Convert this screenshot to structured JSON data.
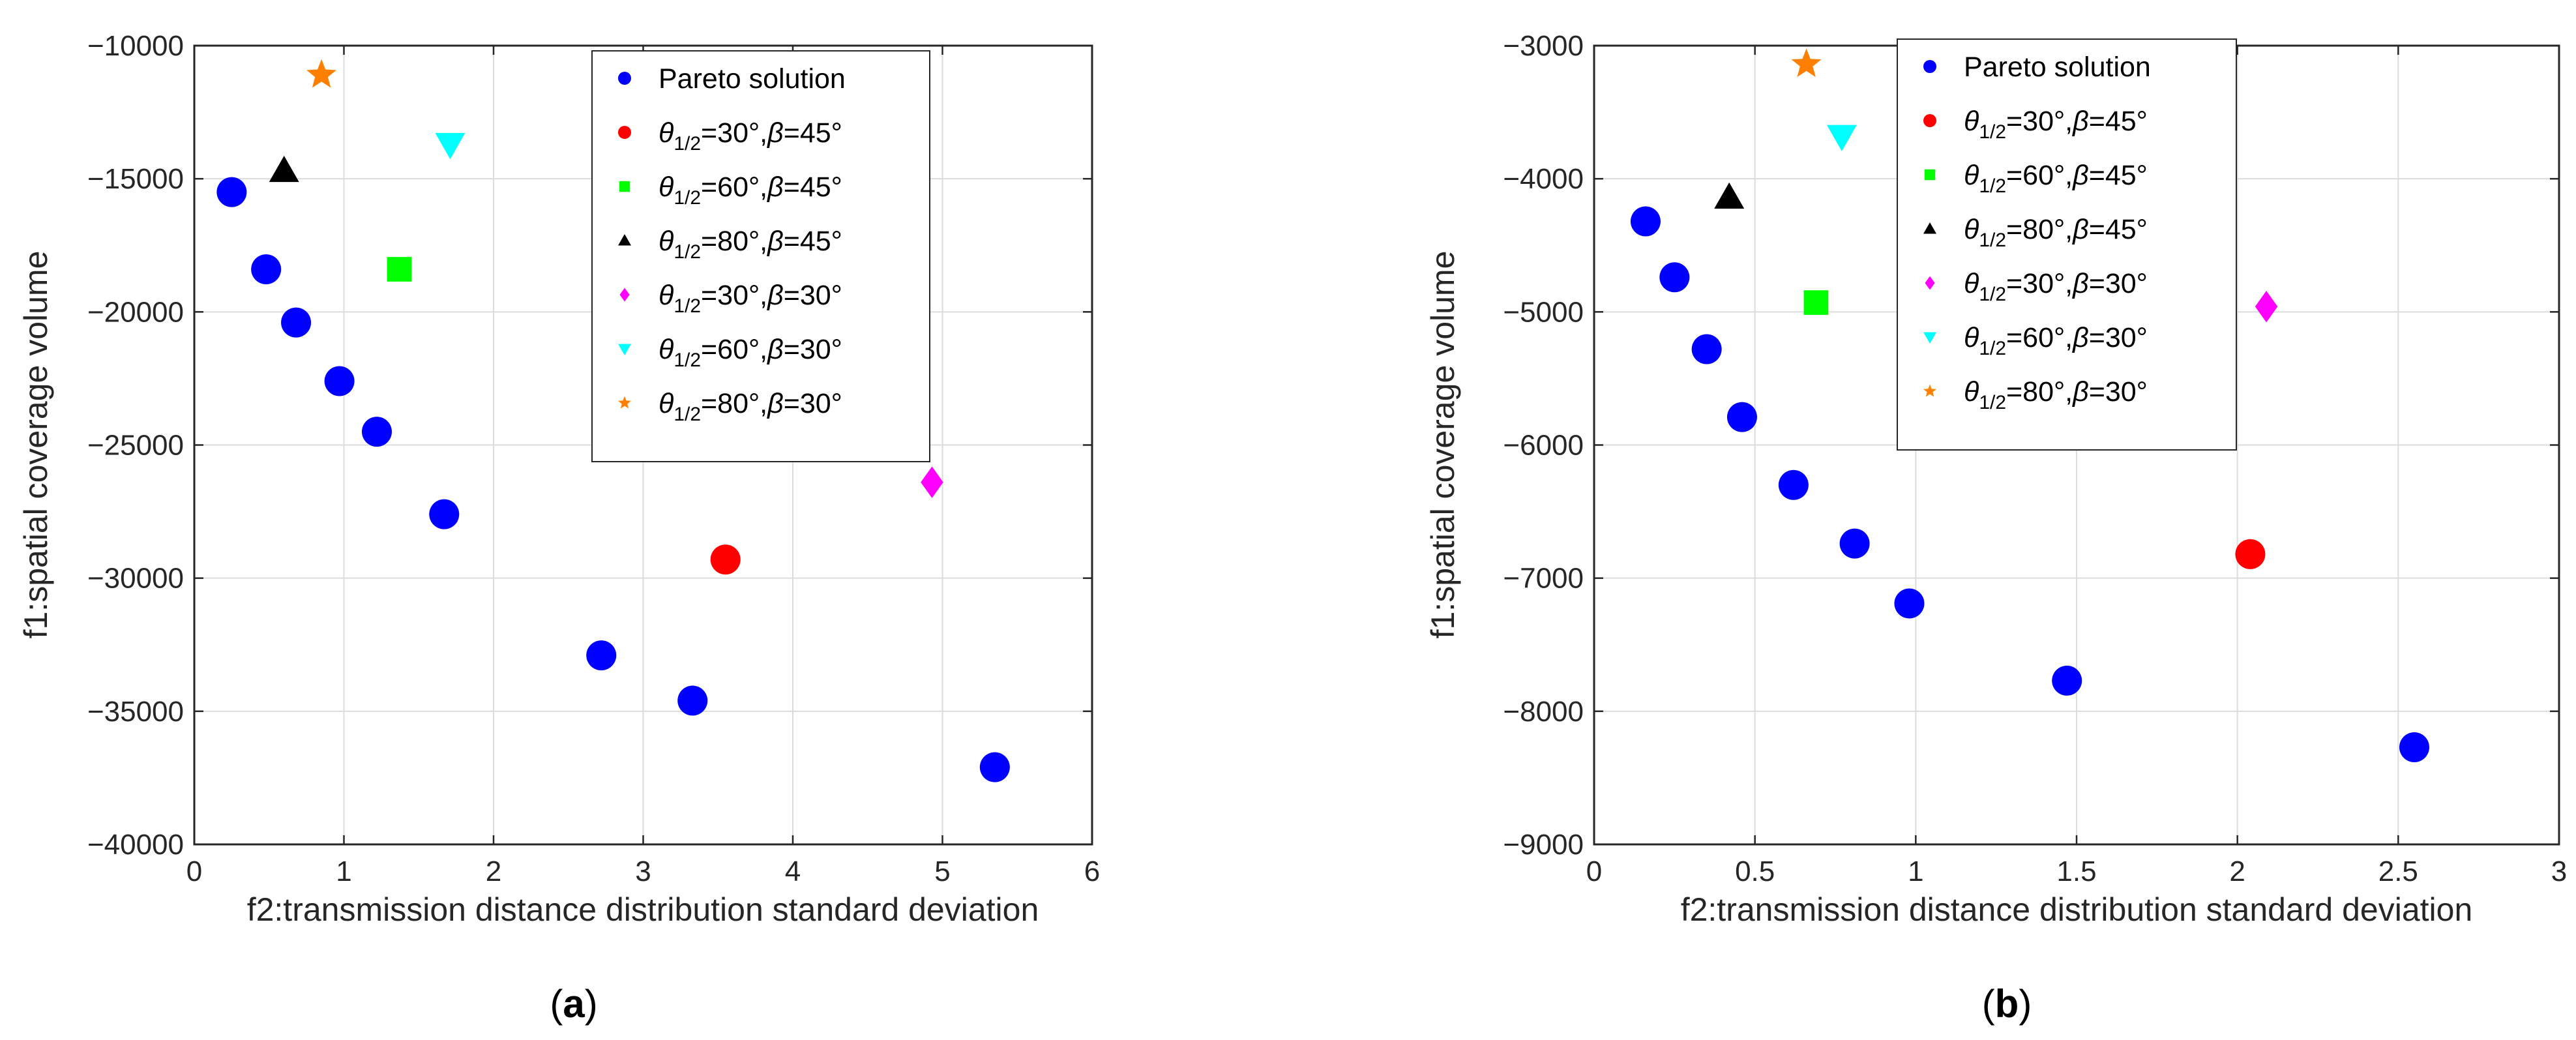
{
  "figure_labels": {
    "a": "a",
    "b": "b"
  },
  "chart_data": [
    {
      "type": "scatter",
      "subfigure": "a",
      "xlabel": "f2:transmission distance distribution standard deviation",
      "ylabel": "f1:spatial coverage volume",
      "xlim": [
        0,
        6
      ],
      "ylim": [
        -40000,
        -10000
      ],
      "xticks": [
        0,
        1,
        2,
        3,
        4,
        5,
        6
      ],
      "yticks": [
        -40000,
        -35000,
        -30000,
        -25000,
        -20000,
        -15000,
        -10000
      ],
      "xtick_labels": [
        "0",
        "1",
        "2",
        "3",
        "4",
        "5",
        "6"
      ],
      "ytick_labels": [
        "−40000",
        "−35000",
        "−30000",
        "−25000",
        "−20000",
        "−15000",
        "−10000"
      ],
      "grid": true,
      "legend_position": "top-right",
      "series": [
        {
          "name": "Pareto solution",
          "marker": "circle",
          "color": "#0000ff",
          "x": [
            0.25,
            0.48,
            0.68,
            0.97,
            1.22,
            1.67,
            2.72,
            3.33,
            5.35
          ],
          "y": [
            -15500,
            -18400,
            -20400,
            -22600,
            -24500,
            -27600,
            -32900,
            -34600,
            -37100
          ]
        },
        {
          "name": "θ1/2=30°,β=45°",
          "marker": "circle",
          "color": "#ff0000",
          "x": [
            3.55
          ],
          "y": [
            -29300
          ]
        },
        {
          "name": "θ1/2=60°,β=45°",
          "marker": "square",
          "color": "#00ff00",
          "x": [
            1.37
          ],
          "y": [
            -18400
          ]
        },
        {
          "name": "θ1/2=80°,β=45°",
          "marker": "triangle-up",
          "color": "#000000",
          "x": [
            0.6
          ],
          "y": [
            -14700
          ]
        },
        {
          "name": "θ1/2=30°,β=30°",
          "marker": "diamond",
          "color": "#ff00ff",
          "x": [
            4.93
          ],
          "y": [
            -26400
          ]
        },
        {
          "name": "θ1/2=60°,β=30°",
          "marker": "triangle-down",
          "color": "#00ffff",
          "x": [
            1.71
          ],
          "y": [
            -13700
          ]
        },
        {
          "name": "θ1/2=80°,β=30°",
          "marker": "star",
          "color": "#ff7f00",
          "x": [
            0.85
          ],
          "y": [
            -11100
          ]
        }
      ]
    },
    {
      "type": "scatter",
      "subfigure": "b",
      "xlabel": "f2:transmission distance distribution standard deviation",
      "ylabel": "f1:spatial coverage volume",
      "xlim": [
        0,
        3
      ],
      "ylim": [
        -9000,
        -3000
      ],
      "xticks": [
        0,
        0.5,
        1,
        1.5,
        2,
        2.5,
        3
      ],
      "yticks": [
        -9000,
        -8000,
        -7000,
        -6000,
        -5000,
        -4000,
        -3000
      ],
      "xtick_labels": [
        "0",
        "0.5",
        "1",
        "1.5",
        "2",
        "2.5",
        "3"
      ],
      "ytick_labels": [
        "−9000",
        "−8000",
        "−7000",
        "−6000",
        "−5000",
        "−4000",
        "−3000"
      ],
      "grid": true,
      "legend_position": "top-right",
      "series": [
        {
          "name": "Pareto solution",
          "marker": "circle",
          "color": "#0000ff",
          "x": [
            0.16,
            0.25,
            0.35,
            0.46,
            0.62,
            0.81,
            0.98,
            1.47,
            2.55
          ],
          "y": [
            -4320,
            -4740,
            -5280,
            -5790,
            -6300,
            -6740,
            -7190,
            -7770,
            -8270
          ]
        },
        {
          "name": "θ1/2=30°,β=45°",
          "marker": "circle",
          "color": "#ff0000",
          "x": [
            2.04
          ],
          "y": [
            -6820
          ]
        },
        {
          "name": "θ1/2=60°,β=45°",
          "marker": "square",
          "color": "#00ff00",
          "x": [
            0.69
          ],
          "y": [
            -4930
          ]
        },
        {
          "name": "θ1/2=80°,β=45°",
          "marker": "triangle-up",
          "color": "#000000",
          "x": [
            0.42
          ],
          "y": [
            -4140
          ]
        },
        {
          "name": "θ1/2=30°,β=30°",
          "marker": "diamond",
          "color": "#ff00ff",
          "x": [
            2.09
          ],
          "y": [
            -4960
          ]
        },
        {
          "name": "θ1/2=60°,β=30°",
          "marker": "triangle-down",
          "color": "#00ffff",
          "x": [
            0.77
          ],
          "y": [
            -3680
          ]
        },
        {
          "name": "θ1/2=80°,β=30°",
          "marker": "star",
          "color": "#ff7f00",
          "x": [
            0.66
          ],
          "y": [
            -3140
          ]
        }
      ]
    }
  ]
}
